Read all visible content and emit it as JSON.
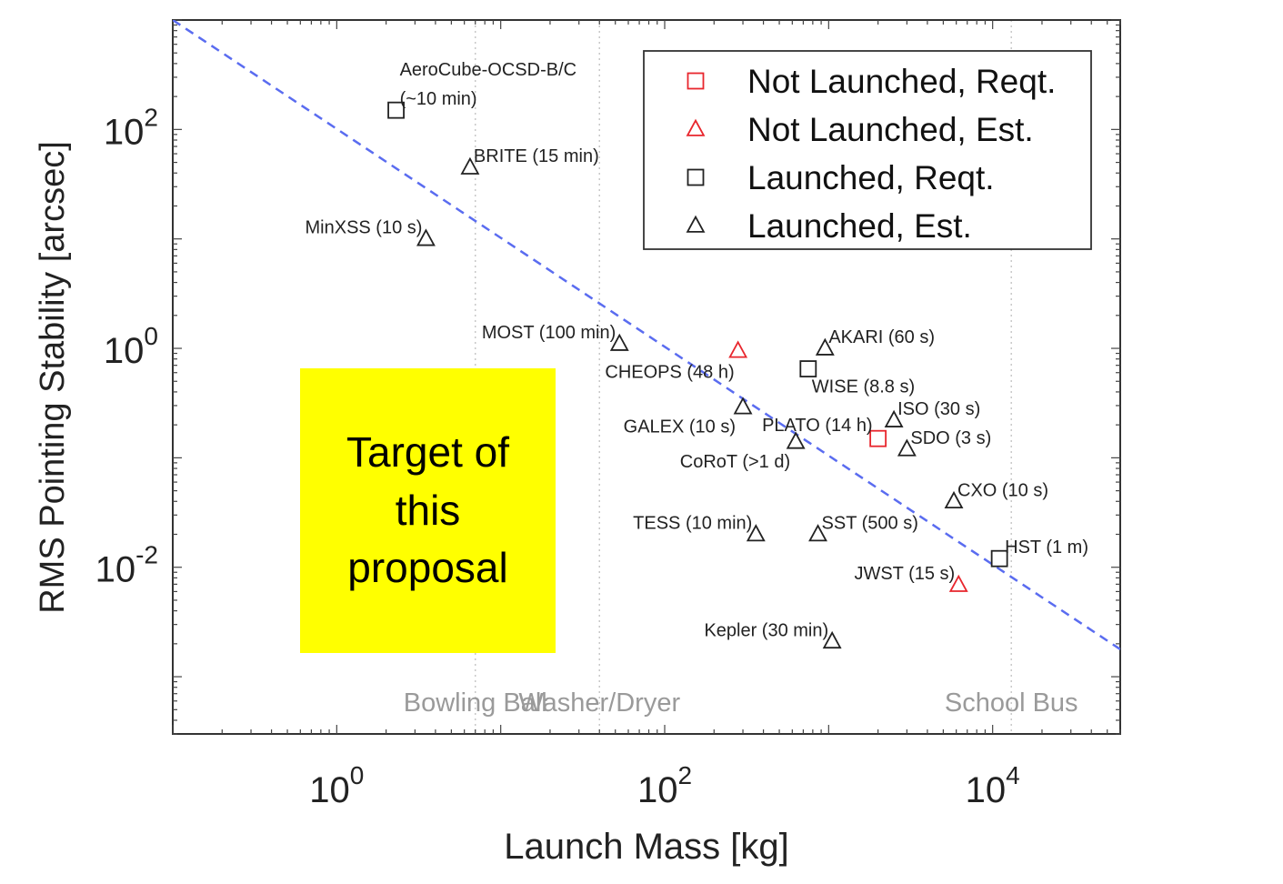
{
  "chart_data": {
    "type": "scatter",
    "title": "",
    "xlabel": "Launch Mass [kg]",
    "ylabel": "RMS Pointing Stability [arcsec]",
    "xscale": "log",
    "yscale": "log",
    "xlim": [
      0.1,
      60000
    ],
    "ylim": [
      0.0003,
      1000
    ],
    "x_ticks": [
      1,
      100,
      10000
    ],
    "x_tick_labels": [
      {
        "base": "10",
        "exp": "0"
      },
      {
        "base": "10",
        "exp": "2"
      },
      {
        "base": "10",
        "exp": "4"
      }
    ],
    "y_ticks": [
      0.01,
      1,
      100
    ],
    "y_tick_labels": [
      {
        "base": "10",
        "exp": "-2"
      },
      {
        "base": "10",
        "exp": "0"
      },
      {
        "base": "10",
        "exp": "2"
      }
    ],
    "grid": "vertical dotted lines at reference masses",
    "legend_position": "top-right",
    "legend": [
      {
        "label": "Not Launched, Reqt.",
        "marker": "square",
        "color": "#e8262d"
      },
      {
        "label": "Not Launched, Est.",
        "marker": "triangle",
        "color": "#e8262d"
      },
      {
        "label": "Launched, Reqt.",
        "marker": "square",
        "color": "#222222"
      },
      {
        "label": "Launched, Est.",
        "marker": "triangle",
        "color": "#222222"
      }
    ],
    "trend_line": {
      "style": "dashed",
      "color": "#5a6cf0",
      "points": [
        [
          0.1,
          1000
        ],
        [
          60000,
          0.00178
        ]
      ]
    },
    "reference_masses": [
      {
        "label": "Bowling Ball",
        "x": 7
      },
      {
        "label": "Washer/Dryer",
        "x": 40
      },
      {
        "label": "School Bus",
        "x": 13000
      }
    ],
    "points": [
      {
        "label": "AeroCube-OCSD-B/C",
        "sublabel": "(~10 min)",
        "x": 2.3,
        "y": 150,
        "marker": "square",
        "status": "launched"
      },
      {
        "label": "BRITE (15 min)",
        "x": 6.5,
        "y": 45,
        "marker": "triangle",
        "status": "launched"
      },
      {
        "label": "MinXSS (10 s)",
        "x": 3.5,
        "y": 10,
        "marker": "triangle",
        "status": "launched"
      },
      {
        "label": "MOST (100 min)",
        "x": 53,
        "y": 1.1,
        "marker": "triangle",
        "status": "launched"
      },
      {
        "label": "CHEOPS (48 h)",
        "x": 280,
        "y": 0.95,
        "marker": "triangle",
        "status": "not-launched"
      },
      {
        "label": "AKARI (60 s)",
        "x": 950,
        "y": 1.0,
        "marker": "triangle",
        "status": "launched"
      },
      {
        "label": "WISE (8.8 s)",
        "x": 750,
        "y": 0.65,
        "marker": "square",
        "status": "launched"
      },
      {
        "label": "PLATO (14 h)",
        "x": 2000,
        "y": 0.15,
        "marker": "square",
        "status": "not-launched"
      },
      {
        "label": "ISO (30 s)",
        "x": 2500,
        "y": 0.22,
        "marker": "triangle",
        "status": "launched"
      },
      {
        "label": "GALEX (10 s)",
        "x": 300,
        "y": 0.29,
        "marker": "triangle",
        "status": "launched"
      },
      {
        "label": "CoRoT (>1 d)",
        "x": 630,
        "y": 0.14,
        "marker": "triangle",
        "status": "launched"
      },
      {
        "label": "SDO (3 s)",
        "x": 3000,
        "y": 0.12,
        "marker": "triangle",
        "status": "launched"
      },
      {
        "label": "CXO (10 s)",
        "x": 5800,
        "y": 0.04,
        "marker": "triangle",
        "status": "launched"
      },
      {
        "label": "TESS (10 min)",
        "x": 360,
        "y": 0.02,
        "marker": "triangle",
        "status": "launched"
      },
      {
        "label": "SST (500 s)",
        "x": 860,
        "y": 0.02,
        "marker": "triangle",
        "status": "launched"
      },
      {
        "label": "HST (1 m)",
        "x": 11000,
        "y": 0.012,
        "marker": "square",
        "status": "launched"
      },
      {
        "label": "JWST (15 s)",
        "x": 6200,
        "y": 0.0069,
        "marker": "triangle",
        "status": "not-launched"
      },
      {
        "label": "Kepler (30 min)",
        "x": 1050,
        "y": 0.0021,
        "marker": "triangle",
        "status": "launched"
      }
    ]
  },
  "annotation": {
    "text": "Target of\nthis\nproposal",
    "color": "#ffff00"
  }
}
